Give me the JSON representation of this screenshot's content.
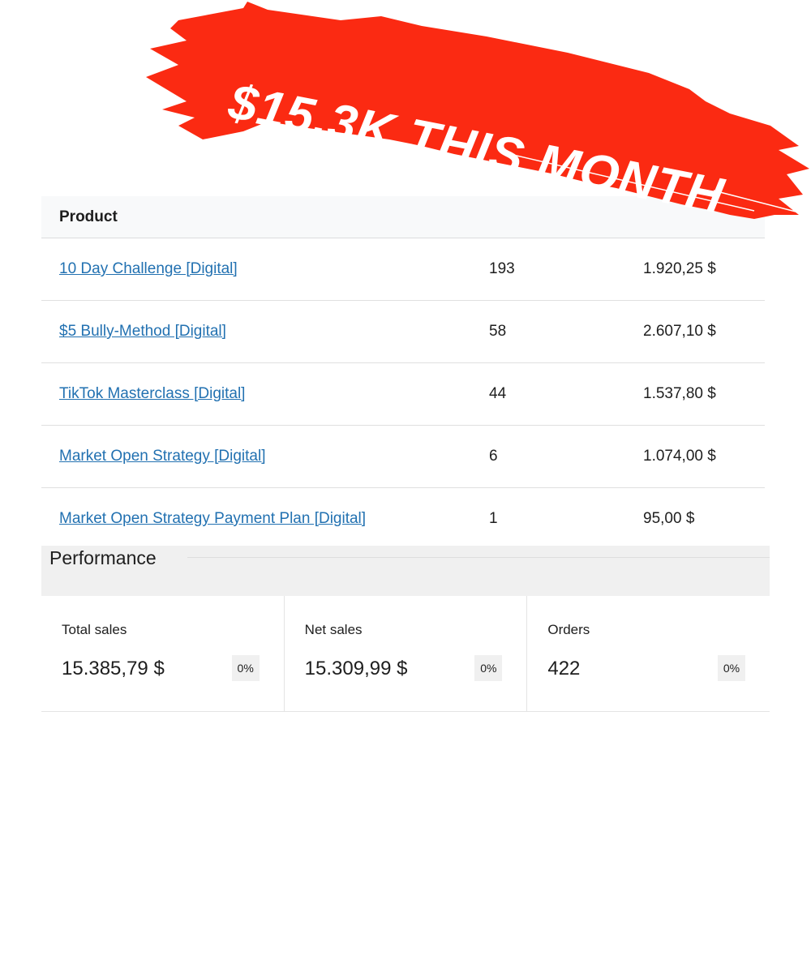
{
  "banner": {
    "text": "$15,3K THIS MONTH",
    "color": "#fb2a12"
  },
  "table": {
    "header": {
      "product": "Product"
    },
    "rows": [
      {
        "product": "10 Day Challenge [Digital]",
        "sold": "193",
        "sales": "1.920,25 $"
      },
      {
        "product": "$5 Bully-Method [Digital]",
        "sold": "58",
        "sales": "2.607,10 $"
      },
      {
        "product": "TikTok Masterclass [Digital]",
        "sold": "44",
        "sales": "1.537,80 $"
      },
      {
        "product": "Market Open Strategy [Digital]",
        "sold": "6",
        "sales": "1.074,00 $"
      },
      {
        "product": "Market Open Strategy Payment Plan [Digital]",
        "sold": "1",
        "sales": "95,00 $"
      }
    ]
  },
  "performance": {
    "title": "Performance",
    "cards": [
      {
        "label": "Total sales",
        "value": "15.385,79 $",
        "change": "0%"
      },
      {
        "label": "Net sales",
        "value": "15.309,99 $",
        "change": "0%"
      },
      {
        "label": "Orders",
        "value": "422",
        "change": "0%"
      }
    ]
  }
}
